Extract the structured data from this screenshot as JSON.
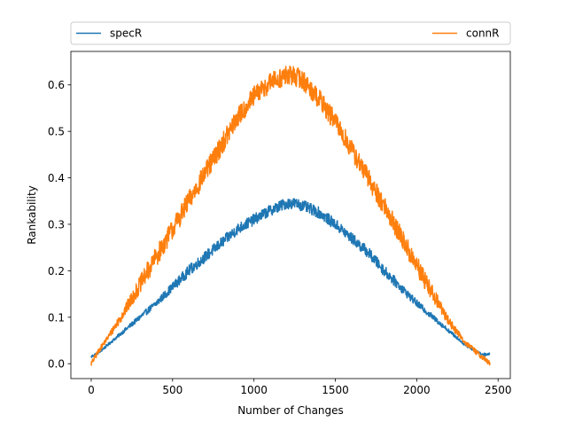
{
  "chart_data": {
    "type": "line",
    "title": "",
    "xlabel": "Number of Changes",
    "ylabel": "Rankability",
    "xlim": [
      -125,
      2575
    ],
    "ylim": [
      -0.032,
      0.672
    ],
    "xticks": [
      0,
      500,
      1000,
      1500,
      2000,
      2500
    ],
    "yticks": [
      0.0,
      0.1,
      0.2,
      0.3,
      0.4,
      0.5,
      0.6
    ],
    "grid": false,
    "legend_position": "top, spanning full width above plot",
    "noise": true,
    "series": [
      {
        "name": "specR",
        "color": "#1f77b4",
        "x": [
          0,
          50,
          100,
          200,
          300,
          400,
          500,
          600,
          700,
          800,
          900,
          1000,
          1100,
          1200,
          1250,
          1300,
          1400,
          1500,
          1600,
          1700,
          1800,
          1900,
          2000,
          2100,
          2200,
          2300,
          2400,
          2450
        ],
        "y": [
          0.015,
          0.025,
          0.04,
          0.07,
          0.1,
          0.13,
          0.165,
          0.2,
          0.23,
          0.26,
          0.29,
          0.31,
          0.33,
          0.345,
          0.345,
          0.34,
          0.325,
          0.3,
          0.27,
          0.24,
          0.2,
          0.165,
          0.13,
          0.1,
          0.07,
          0.04,
          0.02,
          0.02
        ]
      },
      {
        "name": "connR",
        "color": "#ff7f0e",
        "x": [
          0,
          50,
          100,
          200,
          300,
          400,
          500,
          600,
          700,
          800,
          900,
          1000,
          1100,
          1200,
          1250,
          1300,
          1400,
          1500,
          1600,
          1700,
          1800,
          1900,
          2000,
          2100,
          2200,
          2300,
          2400,
          2450
        ],
        "y": [
          0.0,
          0.03,
          0.055,
          0.11,
          0.17,
          0.23,
          0.29,
          0.35,
          0.41,
          0.47,
          0.53,
          0.575,
          0.605,
          0.62,
          0.62,
          0.61,
          0.57,
          0.52,
          0.46,
          0.4,
          0.34,
          0.275,
          0.21,
          0.15,
          0.09,
          0.045,
          0.015,
          0.0
        ]
      }
    ]
  }
}
